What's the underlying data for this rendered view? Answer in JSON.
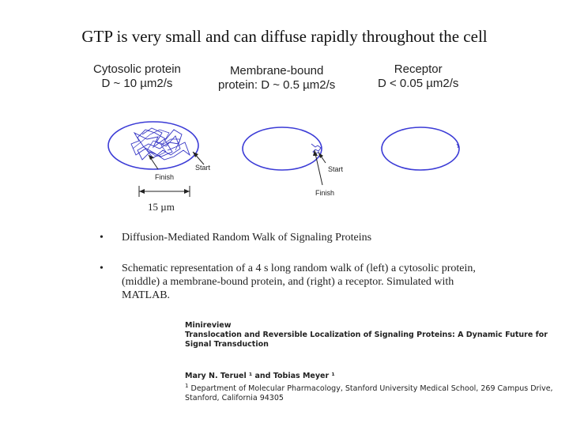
{
  "slide": {
    "title": "GTP is very small and can diffuse rapidly throughout the cell"
  },
  "panels": [
    {
      "label_line1": "Cytosolic protein",
      "label_line2": "D ~ 10 µm2/s"
    },
    {
      "label_line1": "Membrane-bound",
      "label_line2": "protein: D ~ 0.5 µm2/s"
    },
    {
      "label_line1": "Receptor",
      "label_line2": "D < 0.05 µm2/s"
    }
  ],
  "diagram": {
    "start_label": "Start",
    "finish_label": "Finish",
    "scale_label": "15 µm",
    "ellipse_color": "#3b3bd6"
  },
  "bullets": [
    {
      "marker": "•",
      "text": "Diffusion-Mediated Random Walk of Signaling Proteins"
    },
    {
      "marker": "•",
      "text": "Schematic representation of a 4 s long random walk of (left) a cytosolic protein, (middle) a membrane-bound protein, and (right) a receptor. Simulated with MATLAB."
    }
  ],
  "citation": {
    "journal_type": "Minireview",
    "article_title": "Translocation and Reversible Localization of Signaling Proteins: A Dynamic Future for Signal Transduction",
    "authors": "Mary N. Teruel ¹ and Tobias Meyer ¹",
    "affiliation_marker": "1",
    "affiliation": "Department of Molecular Pharmacology, Stanford University Medical School, 269 Campus Drive, Stanford, California 94305"
  }
}
